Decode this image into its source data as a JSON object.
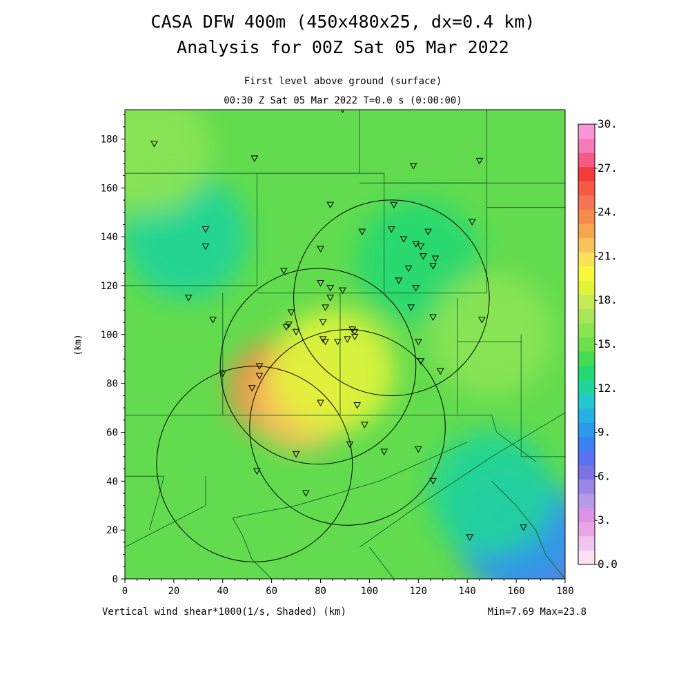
{
  "header": {
    "title_line1": "CASA DFW 400m (450x480x25, dx=0.4 km)",
    "title_line2": "Analysis for 00Z Sat 05 Mar 2022",
    "subtitle_line1": "First level above ground (surface)",
    "subtitle_line2": "00:30 Z Sat 05 Mar 2022    T=0.0 s (0:00:00)"
  },
  "footer": {
    "left": "Vertical wind shear*1000(1/s, Shaded)  (km)",
    "right": "Min=7.69 Max=23.8"
  },
  "chart_data": {
    "type": "heatmap",
    "title": "CASA DFW 400m (450x480x25, dx=0.4 km)",
    "xlabel": "(km)",
    "ylabel": "(km)",
    "xlim": [
      0,
      180
    ],
    "ylim": [
      0,
      192
    ],
    "x_ticks": [
      0,
      20,
      40,
      60,
      80,
      100,
      120,
      140,
      160,
      180
    ],
    "y_ticks": [
      0,
      20,
      40,
      60,
      80,
      100,
      120,
      140,
      160,
      180
    ],
    "colorbar": {
      "range": [
        0,
        30
      ],
      "labels": [
        "0.0",
        "3.",
        "6.",
        "9.",
        "12.",
        "15.",
        "18.",
        "21.",
        "24.",
        "27.",
        "30."
      ],
      "label_values": [
        0,
        3,
        6,
        9,
        12,
        15,
        18,
        21,
        24,
        27,
        30
      ],
      "colors": [
        "#fde0f6",
        "#f2c6ec",
        "#e8a6e4",
        "#d894e2",
        "#b89ae8",
        "#9a86e6",
        "#7c72e2",
        "#5a72f0",
        "#3a80f4",
        "#2c9ae8",
        "#26b2e0",
        "#22c8cc",
        "#20d49a",
        "#26d872",
        "#44dc52",
        "#6ce04e",
        "#8ce454",
        "#a8e65a",
        "#c4ec56",
        "#e2f43a",
        "#f6f83a",
        "#fae25a",
        "#f8c45a",
        "#f6a650",
        "#f48c4c",
        "#f47454",
        "#f45a44",
        "#f23c3c",
        "#f45a84",
        "#f67ab8",
        "#f896d8"
      ]
    },
    "min": 7.69,
    "max": 23.8,
    "field_features": [
      {
        "x": 62,
        "y": 78,
        "value": 23.8
      },
      {
        "x": 72,
        "y": 72,
        "value": 22
      },
      {
        "x": 85,
        "y": 85,
        "value": 18.5
      },
      {
        "x": 25,
        "y": 140,
        "value": 12.5
      },
      {
        "x": 120,
        "y": 130,
        "value": 13
      },
      {
        "x": 172,
        "y": 8,
        "value": 7.69
      },
      {
        "x": 160,
        "y": 20,
        "value": 9.5
      },
      {
        "x": 150,
        "y": 35,
        "value": 12
      },
      {
        "x": 150,
        "y": 100,
        "value": 16
      },
      {
        "x": 10,
        "y": 175,
        "value": 16
      }
    ],
    "radar_rings": [
      {
        "x": 79,
        "y": 87,
        "r": 40
      },
      {
        "x": 109,
        "y": 115,
        "r": 40
      },
      {
        "x": 91,
        "y": 62,
        "r": 40
      },
      {
        "x": 53,
        "y": 47,
        "r": 40
      }
    ],
    "stations": [
      [
        12,
        178
      ],
      [
        53,
        172
      ],
      [
        89,
        192
      ],
      [
        118,
        169
      ],
      [
        145,
        171
      ],
      [
        84,
        153
      ],
      [
        110,
        153
      ],
      [
        142,
        146
      ],
      [
        33,
        143
      ],
      [
        33,
        136
      ],
      [
        97,
        142
      ],
      [
        109,
        143
      ],
      [
        114,
        139
      ],
      [
        119,
        137
      ],
      [
        121,
        136
      ],
      [
        124,
        142
      ],
      [
        127,
        131
      ],
      [
        126,
        128
      ],
      [
        122,
        132
      ],
      [
        80,
        135
      ],
      [
        65,
        126
      ],
      [
        116,
        127
      ],
      [
        112,
        122
      ],
      [
        119,
        119
      ],
      [
        80,
        121
      ],
      [
        84,
        119
      ],
      [
        89,
        118
      ],
      [
        84,
        115
      ],
      [
        82,
        111
      ],
      [
        26,
        115
      ],
      [
        68,
        109
      ],
      [
        117,
        111
      ],
      [
        126,
        107
      ],
      [
        36,
        106
      ],
      [
        81,
        105
      ],
      [
        146,
        106
      ],
      [
        67,
        104
      ],
      [
        66,
        103
      ],
      [
        70,
        101
      ],
      [
        93,
        102
      ],
      [
        94,
        101
      ],
      [
        94,
        99
      ],
      [
        91,
        98
      ],
      [
        81,
        98
      ],
      [
        82,
        97
      ],
      [
        87,
        97
      ],
      [
        120,
        97
      ],
      [
        121,
        89
      ],
      [
        129,
        85
      ],
      [
        55,
        87
      ],
      [
        55,
        83
      ],
      [
        40,
        84
      ],
      [
        52,
        78
      ],
      [
        80,
        72
      ],
      [
        95,
        71
      ],
      [
        98,
        63
      ],
      [
        92,
        55
      ],
      [
        106,
        52
      ],
      [
        120,
        53
      ],
      [
        70,
        51
      ],
      [
        54,
        44
      ],
      [
        126,
        40
      ],
      [
        74,
        35
      ],
      [
        141,
        17
      ],
      [
        163,
        21
      ]
    ],
    "counties": [
      [
        [
          0,
          166
        ],
        [
          54,
          166
        ],
        [
          54,
          120
        ],
        [
          0,
          120
        ]
      ],
      [
        [
          54,
          192
        ],
        [
          96,
          192
        ],
        [
          96,
          166
        ],
        [
          54,
          166
        ]
      ],
      [
        [
          54,
          166
        ],
        [
          106,
          166
        ],
        [
          106,
          117
        ],
        [
          54,
          117
        ]
      ],
      [
        [
          96,
          192
        ],
        [
          148,
          192
        ],
        [
          148,
          162
        ],
        [
          96,
          162
        ]
      ],
      [
        [
          106,
          162
        ],
        [
          148,
          162
        ],
        [
          148,
          117
        ],
        [
          106,
          117
        ]
      ],
      [
        [
          148,
          162
        ],
        [
          180,
          162
        ]
      ],
      [
        [
          148,
          152
        ],
        [
          180,
          152
        ]
      ],
      [
        [
          136,
          115
        ],
        [
          136,
          97
        ],
        [
          162,
          97
        ]
      ],
      [
        [
          162,
          100
        ],
        [
          162,
          50
        ],
        [
          180,
          50
        ]
      ],
      [
        [
          40,
          117
        ],
        [
          40,
          67
        ],
        [
          0,
          67
        ]
      ],
      [
        [
          40,
          67
        ],
        [
          88,
          67
        ],
        [
          88,
          117
        ]
      ],
      [
        [
          88,
          67
        ],
        [
          136,
          67
        ],
        [
          136,
          97
        ]
      ],
      [
        [
          136,
          67
        ],
        [
          150,
          67
        ],
        [
          152,
          60
        ],
        [
          168,
          48
        ]
      ],
      [
        [
          33,
          42
        ],
        [
          33,
          30
        ],
        [
          0,
          13
        ]
      ],
      [
        [
          0,
          42
        ],
        [
          16,
          42
        ],
        [
          10,
          20
        ]
      ],
      [
        [
          44,
          25
        ],
        [
          70,
          30
        ],
        [
          104,
          40
        ],
        [
          140,
          56
        ]
      ],
      [
        [
          44,
          25
        ],
        [
          48,
          18
        ],
        [
          52,
          8
        ],
        [
          60,
          0
        ]
      ],
      [
        [
          96,
          13
        ],
        [
          120,
          30
        ],
        [
          150,
          50
        ],
        [
          180,
          68
        ]
      ],
      [
        [
          100,
          13
        ],
        [
          110,
          0
        ]
      ],
      [
        [
          150,
          40
        ],
        [
          160,
          30
        ],
        [
          168,
          20
        ],
        [
          172,
          10
        ],
        [
          180,
          0
        ]
      ]
    ]
  }
}
